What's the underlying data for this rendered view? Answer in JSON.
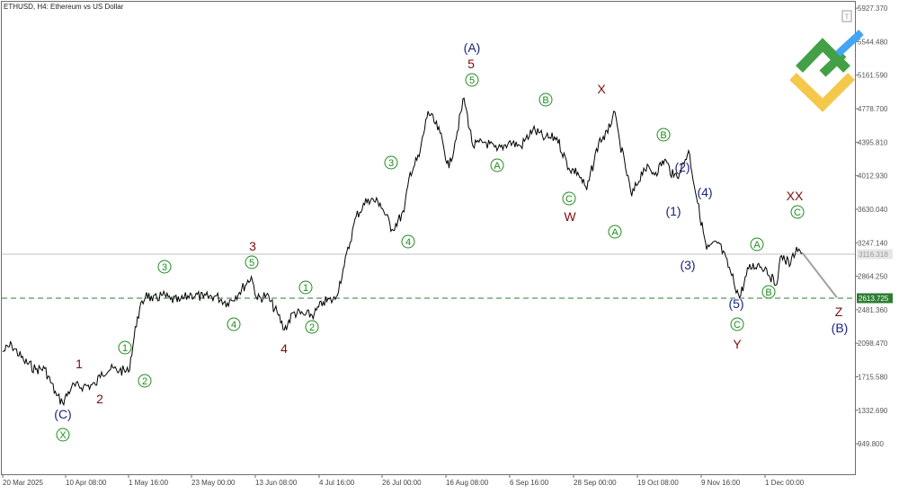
{
  "window": {
    "title": "ETHUSD, H4:  Ethereum vs US Dollar",
    "t_box": "T"
  },
  "colors": {
    "background": "#ffffff",
    "price_line": "#000000",
    "green_wave": "#1e8b1e",
    "red_wave": "#7a0d0d",
    "navy_wave": "#1a237e",
    "support_line": "#2e7d32",
    "current_price_line": "#c0c0c0",
    "projection": "#a0a0a0",
    "logo_green": "#43a047",
    "logo_yellow": "#f4c84a",
    "logo_blue": "#42a5f5"
  },
  "chart_data": {
    "type": "line",
    "title": "ETHUSD, H4:  Ethereum vs US Dollar",
    "xlabel": "",
    "ylabel": "",
    "ylim": [
      602,
      5980
    ],
    "y_ticks": [
      "5927.370",
      "5544.480",
      "5161.590",
      "4778.700",
      "4395.810",
      "4012.930",
      "3630.040",
      "3247.140",
      "2864.250",
      "2481.360",
      "2098.470",
      "1715.580",
      "1332.690",
      "949.800"
    ],
    "x_ticks": [
      "20 Mar 2025",
      "10 Apr 08:00",
      "1 May 16:00",
      "23 May 00:00",
      "13 Jun 08:00",
      "4 Jul 16:00",
      "26 Jul 00:00",
      "16 Aug 08:00",
      "6 Sep 16:00",
      "28 Sep 00:00",
      "19 Oct 08:00",
      "9 Nov 16:00",
      "1 Dec 00:00"
    ],
    "series": [
      {
        "x": [
          "20 Mar 2025",
          "23 Mar",
          "27 Mar",
          "31 Mar",
          "3 Apr",
          "7 Apr",
          "9 Apr",
          "12 Apr",
          "16 Apr",
          "20 Apr",
          "22 Apr",
          "25 Apr",
          "28 Apr",
          "1 May",
          "4 May",
          "7 May",
          "9 May",
          "12 May",
          "15 May",
          "18 May",
          "22 May",
          "26 May",
          "30 May",
          "3 Jun",
          "7 Jun",
          "11 Jun",
          "13 Jun",
          "16 Jun",
          "20 Jun",
          "22 Jun",
          "25 Jun",
          "29 Jun",
          "2 Jul",
          "5 Jul",
          "9 Jul",
          "12 Jul",
          "16 Jul",
          "20 Jul",
          "24 Jul",
          "28 Jul",
          "1 Aug",
          "3 Aug",
          "6 Aug",
          "9 Aug",
          "13 Aug",
          "16 Aug",
          "18 Aug",
          "21 Aug",
          "24 Aug",
          "28 Aug",
          "1 Sep",
          "5 Sep",
          "9 Sep",
          "13 Sep",
          "17 Sep",
          "21 Sep",
          "25 Sep",
          "28 Sep",
          "1 Oct",
          "5 Oct",
          "8 Oct",
          "10 Oct",
          "12 Oct",
          "16 Oct",
          "20 Oct",
          "24 Oct",
          "27 Oct",
          "30 Oct",
          "1 Nov",
          "4 Nov",
          "7 Nov",
          "10 Nov",
          "14 Nov",
          "18 Nov",
          "21 Nov",
          "24 Nov",
          "27 Nov",
          "30 Nov",
          "3 Dec",
          "5 Dec",
          "8 Dec",
          "10 Dec",
          "12 Dec"
        ],
        "values": [
          2000,
          2080,
          1900,
          1800,
          1810,
          1500,
          1420,
          1600,
          1610,
          1620,
          1770,
          1800,
          1790,
          1770,
          2400,
          2680,
          2580,
          2650,
          2600,
          2580,
          2660,
          2620,
          2640,
          2560,
          2680,
          2860,
          2600,
          2650,
          2420,
          2250,
          2450,
          2420,
          2430,
          2570,
          2600,
          2980,
          3550,
          3750,
          3700,
          3400,
          3600,
          4050,
          4230,
          4750,
          4500,
          4100,
          4400,
          4900,
          4350,
          4400,
          4300,
          4400,
          4350,
          4540,
          4440,
          4450,
          4100,
          4050,
          3850,
          4400,
          4500,
          4750,
          4400,
          3780,
          4100,
          4050,
          4200,
          4000,
          4050,
          4300,
          3700,
          3170,
          3250,
          2910,
          2620,
          2950,
          3000,
          2950,
          2760,
          3100,
          3000,
          3200,
          3130
        ]
      }
    ],
    "levels": {
      "support": "2613.725",
      "current_price": "3116.318"
    },
    "projection": {
      "from": "12 Dec",
      "to_value": 2620
    },
    "wave_labels": [
      {
        "text": "(C)",
        "style": "navy",
        "circled": false
      },
      {
        "text": "X",
        "style": "green",
        "circled": true
      },
      {
        "text": "1",
        "style": "red",
        "circled": false
      },
      {
        "text": "2",
        "style": "red",
        "circled": false
      },
      {
        "text": "1",
        "style": "green",
        "circled": true
      },
      {
        "text": "2",
        "style": "green",
        "circled": true
      },
      {
        "text": "3",
        "style": "green",
        "circled": true
      },
      {
        "text": "4",
        "style": "green",
        "circled": true
      },
      {
        "text": "5",
        "style": "green",
        "circled": true
      },
      {
        "text": "3",
        "style": "red",
        "circled": false
      },
      {
        "text": "4",
        "style": "red",
        "circled": false
      },
      {
        "text": "1",
        "style": "green",
        "circled": true
      },
      {
        "text": "2",
        "style": "green",
        "circled": true
      },
      {
        "text": "3",
        "style": "green",
        "circled": true
      },
      {
        "text": "4",
        "style": "green",
        "circled": true
      },
      {
        "text": "(A)",
        "style": "navy",
        "circled": false
      },
      {
        "text": "5",
        "style": "red",
        "circled": false
      },
      {
        "text": "5",
        "style": "green",
        "circled": true
      },
      {
        "text": "A",
        "style": "green",
        "circled": true
      },
      {
        "text": "B",
        "style": "green",
        "circled": true
      },
      {
        "text": "C",
        "style": "green",
        "circled": true
      },
      {
        "text": "W",
        "style": "red",
        "circled": false
      },
      {
        "text": "X",
        "style": "red",
        "circled": false
      },
      {
        "text": "A",
        "style": "green",
        "circled": true
      },
      {
        "text": "B",
        "style": "green",
        "circled": true
      },
      {
        "text": "(2)",
        "style": "navy",
        "circled": false
      },
      {
        "text": "(1)",
        "style": "navy",
        "circled": false
      },
      {
        "text": "(4)",
        "style": "navy",
        "circled": false
      },
      {
        "text": "(3)",
        "style": "navy",
        "circled": false
      },
      {
        "text": "(5)",
        "style": "navy",
        "circled": false
      },
      {
        "text": "C",
        "style": "green",
        "circled": true
      },
      {
        "text": "Y",
        "style": "red",
        "circled": false
      },
      {
        "text": "A",
        "style": "green",
        "circled": true
      },
      {
        "text": "B",
        "style": "green",
        "circled": true
      },
      {
        "text": "XX",
        "style": "red",
        "circled": false
      },
      {
        "text": "C",
        "style": "green",
        "circled": true
      },
      {
        "text": "Z",
        "style": "red",
        "circled": false
      },
      {
        "text": "(B)",
        "style": "navy",
        "circled": false
      }
    ]
  }
}
